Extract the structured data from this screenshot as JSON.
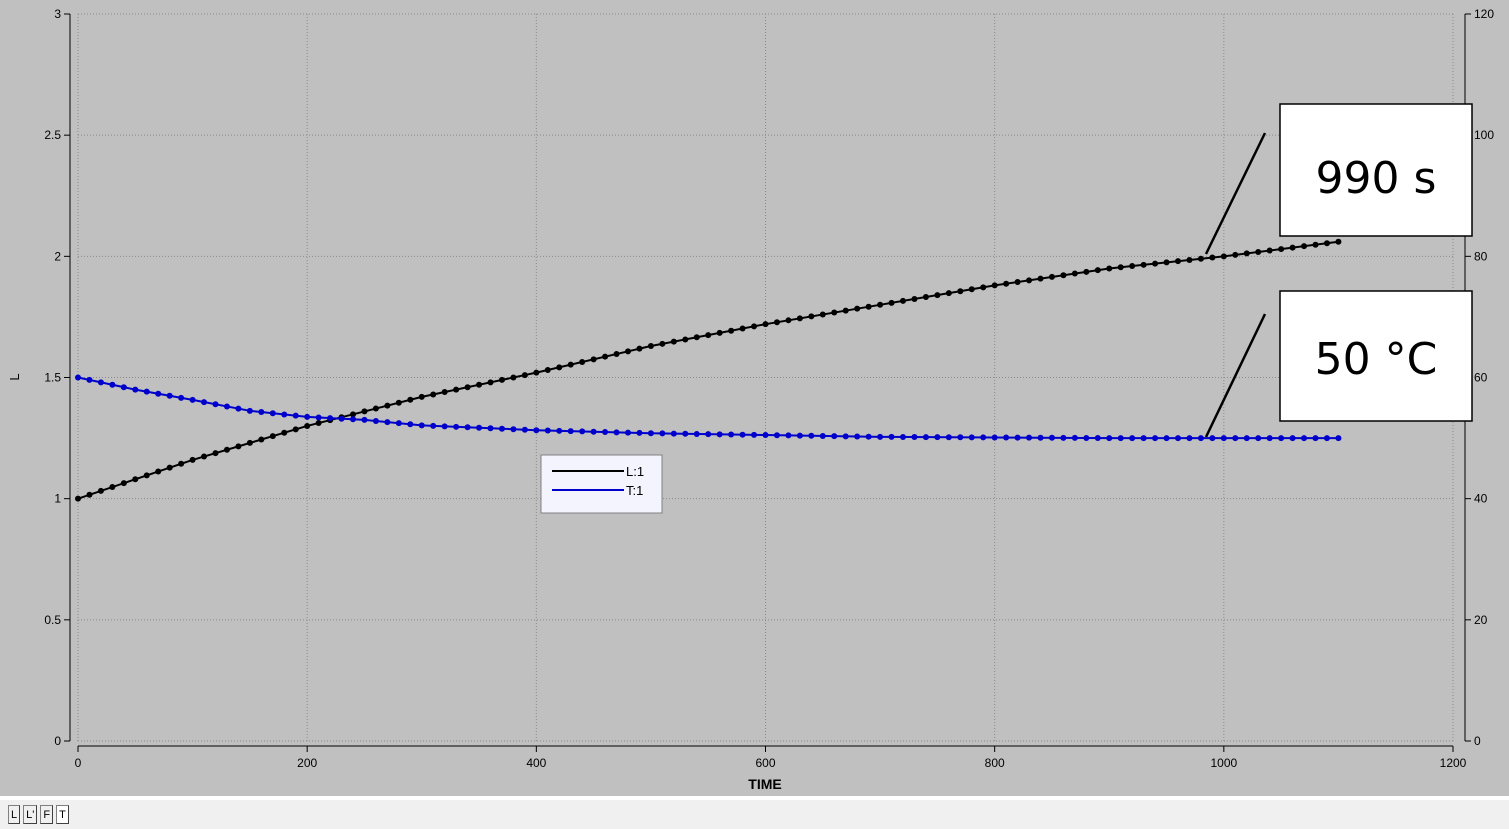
{
  "chart_data": {
    "type": "line",
    "xlabel": "TIME",
    "ylabel": "L",
    "y2label": "",
    "xlim": [
      0,
      1200
    ],
    "ylim": [
      0,
      3
    ],
    "y2lim": [
      0,
      120
    ],
    "x_ticks": [
      "0",
      "200",
      "400",
      "600",
      "800",
      "1000",
      "1200"
    ],
    "y_ticks": [
      "0",
      "0.5",
      "1",
      "1.5",
      "2",
      "2.5",
      "3"
    ],
    "y2_ticks": [
      "0",
      "20",
      "40",
      "60",
      "80",
      "100",
      "120"
    ],
    "grid": true,
    "legend_position": "center-left",
    "series": [
      {
        "name": "L:1",
        "axis": "left",
        "color": "#000000",
        "x": [
          0,
          100,
          200,
          300,
          400,
          500,
          600,
          700,
          800,
          900,
          1000,
          1100
        ],
        "values": [
          1.0,
          1.16,
          1.3,
          1.42,
          1.52,
          1.63,
          1.72,
          1.8,
          1.88,
          1.95,
          2.0,
          2.06
        ]
      },
      {
        "name": "T:1",
        "axis": "right",
        "color": "#0000cc",
        "x": [
          0,
          50,
          100,
          150,
          200,
          250,
          300,
          400,
          500,
          600,
          700,
          800,
          900,
          1000,
          1100
        ],
        "values": [
          60,
          58,
          56.3,
          54.5,
          53.5,
          53.0,
          52.1,
          51.3,
          50.8,
          50.5,
          50.2,
          50.1,
          50.0,
          50.0,
          50.0
        ]
      }
    ],
    "annotations": [
      {
        "text": "990 s",
        "x": 990,
        "value": 2.0,
        "axis": "left"
      },
      {
        "text": "50 °C",
        "x": 990,
        "value": 50,
        "axis": "right"
      }
    ]
  },
  "tabs": [
    {
      "label": "L",
      "active": false
    },
    {
      "label": "L'",
      "active": false
    },
    {
      "label": "F",
      "active": false
    },
    {
      "label": "T",
      "active": true
    }
  ]
}
